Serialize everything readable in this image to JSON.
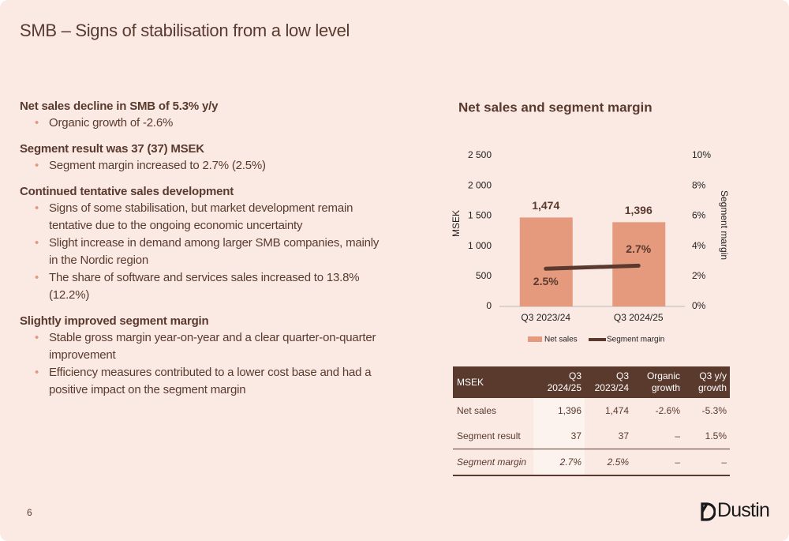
{
  "header": {
    "title": "SMB – Signs of stabilisation from a low level"
  },
  "sections": [
    {
      "heading": "Net sales decline in SMB of 5.3% y/y",
      "bullets": [
        "Organic growth of -2.6%"
      ]
    },
    {
      "heading": "Segment result was 37 (37) MSEK",
      "bullets": [
        "Segment margin increased to 2.7% (2.5%)"
      ]
    },
    {
      "heading": "Continued tentative sales development",
      "bullets": [
        "Signs of some stabilisation, but market development remain tentative due to the ongoing economic uncertainty",
        "Slight increase in demand among larger SMB companies, mainly in the Nordic region",
        "The share of software and services sales increased to 13.8% (12.2%)"
      ]
    },
    {
      "heading": "Slightly improved segment margin",
      "bullets": [
        "Stable gross margin year-on-year and a clear quarter-on-quarter improvement",
        "Efficiency measures contributed to a lower cost base and had a positive impact on the segment margin"
      ]
    }
  ],
  "chart_data": {
    "type": "bar_line",
    "title": "Net sales and segment margin",
    "y_label": "MSEK",
    "y2_label": "Segment margin",
    "categories": [
      "Q3 2023/24",
      "Q3 2024/25"
    ],
    "series": [
      {
        "name": "Net sales",
        "type": "bar",
        "color": "#e5997d",
        "values": [
          1474,
          1396
        ],
        "value_labels": [
          "1,474",
          "1,396"
        ]
      },
      {
        "name": "Segment margin",
        "type": "line",
        "axis": "y2",
        "color": "#5a3a2e",
        "values": [
          2.5,
          2.7
        ],
        "value_labels": [
          "2.5%",
          "2.7%"
        ]
      }
    ],
    "ylim": [
      0,
      2500
    ],
    "yticks": [
      0,
      500,
      {
        "value": 1000,
        "label": "1 000"
      },
      {
        "value": 1500,
        "label": "1 500"
      },
      {
        "value": 2000,
        "label": "2 000"
      },
      {
        "value": 2500,
        "label": "2 500"
      }
    ],
    "y2lim": [
      0,
      10
    ],
    "y2ticks": [
      {
        "value": 0,
        "label": "0%"
      },
      {
        "value": 2,
        "label": "2%"
      },
      {
        "value": 4,
        "label": "4%"
      },
      {
        "value": 6,
        "label": "6%"
      },
      {
        "value": 8,
        "label": "8%"
      },
      {
        "value": 10,
        "label": "10%"
      }
    ],
    "grid": false,
    "legend": "bottom"
  },
  "table": {
    "header": [
      [
        "MSEK"
      ],
      [
        "Q3",
        "2024/25"
      ],
      [
        "Q3",
        "2023/24"
      ],
      [
        "Organic",
        "growth"
      ],
      [
        "Q3 y/y",
        "growth"
      ]
    ],
    "rows": [
      [
        "Net sales",
        "1,396",
        "1,474",
        "-2.6%",
        "-5.3%"
      ],
      [
        "Segment result",
        "37",
        "37",
        "–",
        "1.5%"
      ],
      [
        "Segment margin",
        "2.7%",
        "2.5%",
        "–",
        "–"
      ]
    ]
  },
  "footer": {
    "page": "6",
    "logo": "Dustin"
  }
}
